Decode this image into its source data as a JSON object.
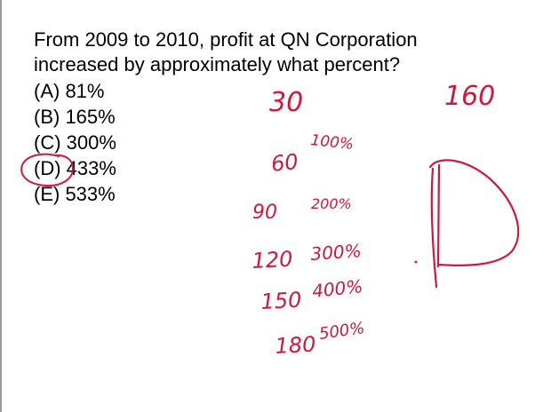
{
  "question": {
    "line1": "From 2009 to 2010, profit at QN Corporation",
    "line2": "increased by approximately what percent?"
  },
  "choices": [
    {
      "label": "(A) 81%"
    },
    {
      "label": "(B) 165%"
    },
    {
      "label": "(C) 300%"
    },
    {
      "label": "(D) 433%",
      "circled": true
    },
    {
      "label": "(E) 533%"
    }
  ],
  "handwriting": {
    "start_value": "30",
    "end_value": "160",
    "steps": [
      {
        "value": "60",
        "percent": "100%"
      },
      {
        "value": "90",
        "percent": "200%"
      },
      {
        "value": "120",
        "percent": "300%"
      },
      {
        "value": "150",
        "percent": "400%"
      },
      {
        "value": "180",
        "percent": "500%"
      }
    ],
    "answer_letter": "D"
  },
  "colors": {
    "ink": "#d4163c",
    "text": "#000000",
    "background": "#ffffff"
  }
}
